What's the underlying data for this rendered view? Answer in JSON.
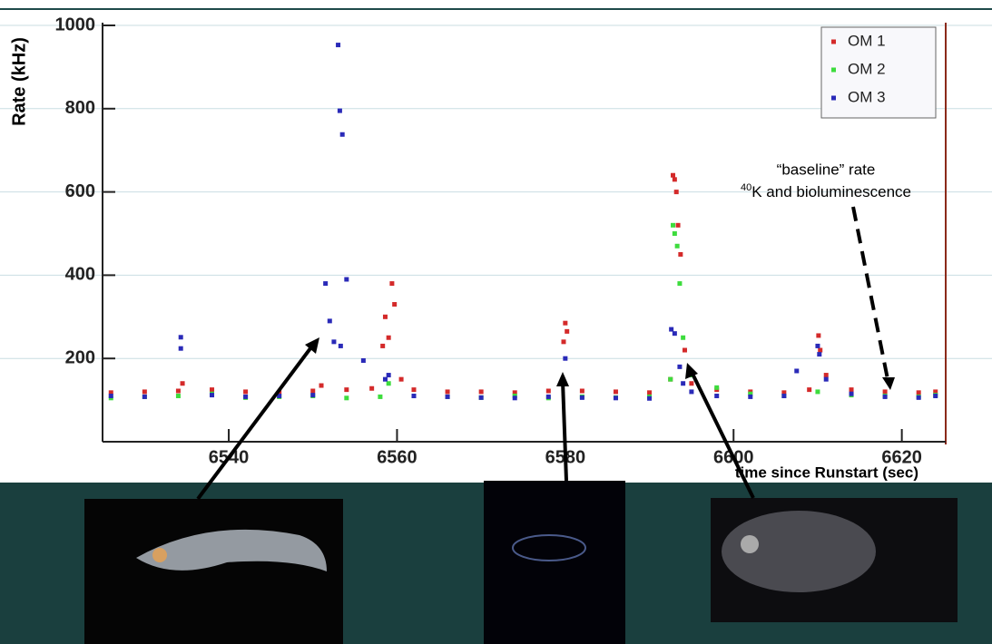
{
  "chart_data": {
    "type": "scatter",
    "xlabel": "time since Runstart (sec)",
    "ylabel": "Rate (kHz)",
    "xlim": [
      6525,
      6625
    ],
    "xticks": [
      6540,
      6560,
      6580,
      6600,
      6620
    ],
    "ylim": [
      0,
      1000
    ],
    "yticks": [
      200,
      400,
      600,
      800,
      1000
    ],
    "grid": true,
    "legend": "upper right",
    "annotation": {
      "line1": "“baseline” rate",
      "sup": "40",
      "line2": "K and bioluminescence"
    },
    "series": [
      {
        "name": "OM 1",
        "color": "#d42a2a",
        "x": [
          6526,
          6530,
          6534,
          6534.5,
          6538,
          6542,
          6546,
          6550,
          6551,
          6554,
          6557,
          6558.3,
          6558.6,
          6559,
          6559.4,
          6559.7,
          6560.5,
          6562,
          6566,
          6570,
          6574,
          6578,
          6579.8,
          6580,
          6580.2,
          6582,
          6586,
          6590,
          6592.5,
          6592.8,
          6593,
          6593.2,
          6593.4,
          6593.7,
          6594.2,
          6595,
          6598,
          6602,
          6606,
          6609,
          6610.1,
          6610.3,
          6611,
          6614,
          6618,
          6622,
          6624
        ],
        "values": [
          118,
          120,
          122,
          140,
          125,
          120,
          118,
          122,
          135,
          125,
          128,
          230,
          300,
          250,
          380,
          330,
          150,
          125,
          120,
          120,
          118,
          122,
          240,
          285,
          265,
          122,
          120,
          118,
          150,
          640,
          630,
          600,
          520,
          450,
          220,
          140,
          125,
          120,
          118,
          125,
          255,
          220,
          160,
          125,
          120,
          118,
          120
        ]
      },
      {
        "name": "OM 2",
        "color": "#3ddc3d",
        "x": [
          6526,
          6530,
          6534,
          6538,
          6542,
          6546,
          6550,
          6554,
          6558,
          6559,
          6562,
          6566,
          6570,
          6574,
          6578,
          6582,
          6586,
          6590,
          6592.5,
          6592.8,
          6593,
          6593.3,
          6593.6,
          6594,
          6595,
          6598,
          6602,
          6606,
          6610,
          6614,
          6618,
          6622,
          6624
        ],
        "values": [
          105,
          108,
          110,
          115,
          106,
          108,
          110,
          105,
          108,
          140,
          110,
          108,
          106,
          110,
          105,
          108,
          106,
          108,
          150,
          520,
          500,
          470,
          380,
          250,
          160,
          130,
          115,
          110,
          120,
          112,
          110,
          108,
          112
        ]
      },
      {
        "name": "OM 3",
        "color": "#2a2ab8",
        "x": [
          6526,
          6530,
          6534.3,
          6534.3,
          6538,
          6542,
          6546,
          6550,
          6551.5,
          6552,
          6552.5,
          6553,
          6553.2,
          6553.3,
          6553.5,
          6554,
          6556,
          6558.6,
          6559,
          6562,
          6566,
          6570,
          6574,
          6578,
          6580,
          6582,
          6586,
          6590,
          6592.6,
          6593,
          6593.6,
          6594,
          6595,
          6598,
          6602,
          6606,
          6607.5,
          6610,
          6610.2,
          6611,
          6614,
          6618,
          6622,
          6624
        ],
        "values": [
          110,
          108,
          251,
          224,
          112,
          108,
          110,
          112,
          380,
          290,
          240,
          953,
          795,
          230,
          738,
          390,
          195,
          150,
          160,
          110,
          108,
          106,
          105,
          108,
          200,
          106,
          105,
          104,
          270,
          260,
          180,
          140,
          120,
          110,
          108,
          110,
          170,
          230,
          210,
          150,
          115,
          108,
          106,
          110
        ]
      }
    ]
  }
}
